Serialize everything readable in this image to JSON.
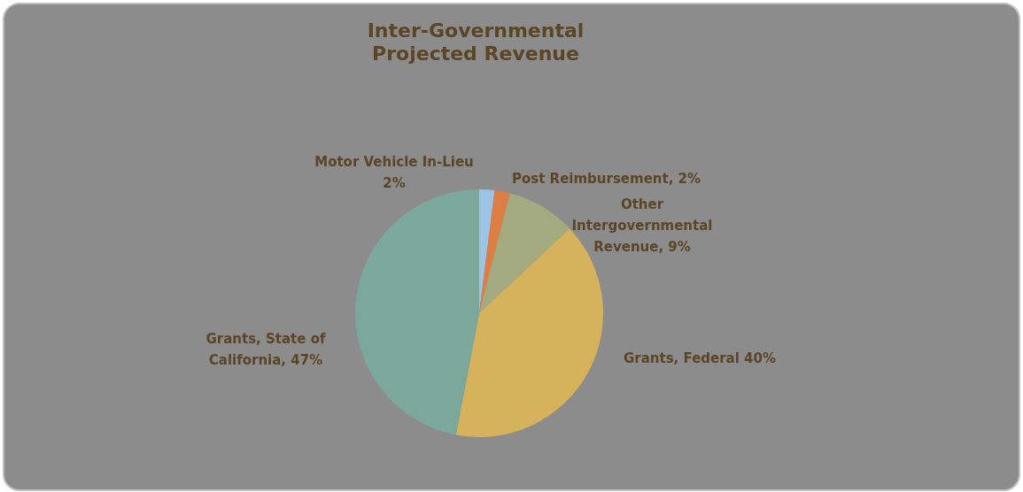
{
  "chart_data": {
    "type": "pie",
    "title": "Inter-Governmental Projected Revenue",
    "categories": [
      "Motor Vehicle In-Lieu",
      "Post Reimbursement",
      "Other Intergovernmental Revenue",
      "Grants, Federal",
      "Grants, State of California"
    ],
    "values": [
      2,
      2,
      9,
      40,
      47
    ],
    "value_labels": [
      "2%",
      "2%",
      "9%",
      "40%",
      "47%"
    ],
    "colors": [
      "#9dc3e6",
      "#dd7f45",
      "#a5ab80",
      "#d6b25c",
      "#7ba89b"
    ]
  }
}
